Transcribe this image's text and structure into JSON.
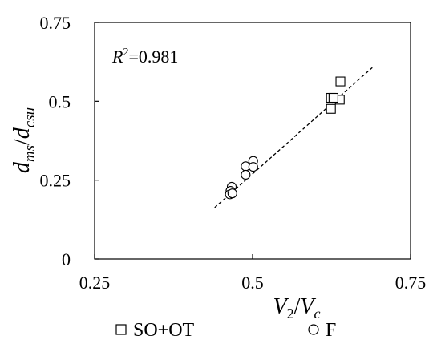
{
  "chart_data": {
    "type": "scatter",
    "xlim": [
      0.25,
      0.75
    ],
    "ylim": [
      0,
      0.75
    ],
    "x_ticks": [
      "0.25",
      "0.5",
      "0.75"
    ],
    "y_ticks": [
      "0",
      "0.25",
      "0.5",
      "0.75"
    ],
    "xlabel": {
      "v": "V",
      "sub": "2",
      "slash": "/",
      "v2": "V",
      "sub2": "c"
    },
    "ylabel": {
      "d1": "d",
      "sub1": "ms",
      "slash": "/",
      "d2": "d",
      "sub2": "csu"
    },
    "annotation": {
      "r": "R",
      "sup": "2",
      "value": "=0.981"
    },
    "grid": false,
    "legend_position": "bottom",
    "series": [
      {
        "name": "SO+OT",
        "marker": "square",
        "x": [
          0.639,
          0.624,
          0.638,
          0.624,
          0.628
        ],
        "y": [
          0.563,
          0.511,
          0.505,
          0.476,
          0.511
        ]
      },
      {
        "name": "F",
        "marker": "circle",
        "x": [
          0.501,
          0.489,
          0.501,
          0.489,
          0.467,
          0.465,
          0.464,
          0.468
        ],
        "y": [
          0.311,
          0.294,
          0.292,
          0.267,
          0.229,
          0.216,
          0.205,
          0.208
        ]
      }
    ],
    "fit_line": {
      "x": [
        0.44,
        0.69
      ],
      "y": [
        0.163,
        0.608
      ],
      "style": "dashed"
    }
  }
}
